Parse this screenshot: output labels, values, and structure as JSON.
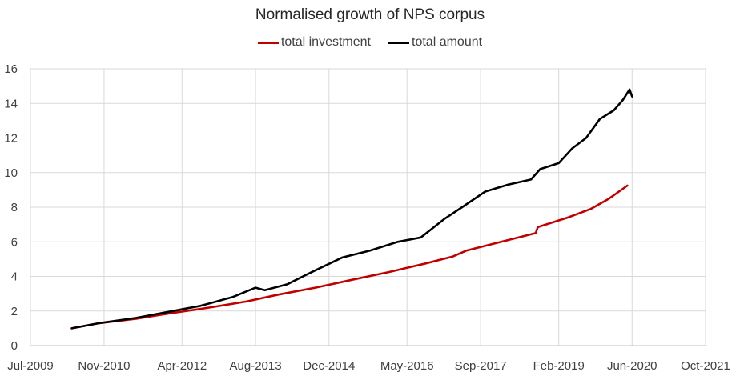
{
  "chart_data": {
    "type": "line",
    "title": "Normalised growth of NPS corpus",
    "xlabel": "",
    "ylabel": "",
    "x_axis_type": "date",
    "xlim": [
      "2009-07-01",
      "2021-10-01"
    ],
    "x_tick_labels": [
      "Jul-2009",
      "Nov-2010",
      "Apr-2012",
      "Aug-2013",
      "Dec-2014",
      "May-2016",
      "Sep-2017",
      "Feb-2019",
      "Jun-2020",
      "Oct-2021"
    ],
    "x_ticks": [
      "2009-07-01",
      "2010-11-01",
      "2012-04-01",
      "2013-08-01",
      "2014-12-01",
      "2016-05-01",
      "2017-09-01",
      "2019-02-01",
      "2020-06-01",
      "2021-10-01"
    ],
    "ylim": [
      0,
      16
    ],
    "y_ticks": [
      0,
      2,
      4,
      6,
      8,
      10,
      12,
      14,
      16
    ],
    "grid": true,
    "legend_position": "top-center",
    "series": [
      {
        "name": "total investment",
        "color": "#c00000",
        "points": [
          [
            "2010-04-01",
            1.0
          ],
          [
            "2010-10-01",
            1.3
          ],
          [
            "2011-06-01",
            1.55
          ],
          [
            "2012-01-01",
            1.85
          ],
          [
            "2012-10-01",
            2.2
          ],
          [
            "2013-06-01",
            2.55
          ],
          [
            "2014-01-01",
            2.95
          ],
          [
            "2014-09-01",
            3.35
          ],
          [
            "2015-05-01",
            3.8
          ],
          [
            "2016-01-01",
            4.25
          ],
          [
            "2016-09-01",
            4.75
          ],
          [
            "2017-03-01",
            5.15
          ],
          [
            "2017-06-01",
            5.5
          ],
          [
            "2017-12-01",
            5.9
          ],
          [
            "2018-06-01",
            6.3
          ],
          [
            "2018-09-01",
            6.5
          ],
          [
            "2018-09-15",
            6.85
          ],
          [
            "2019-04-01",
            7.4
          ],
          [
            "2019-09-01",
            7.9
          ],
          [
            "2020-01-01",
            8.5
          ],
          [
            "2020-05-01",
            9.25
          ]
        ]
      },
      {
        "name": "total amount",
        "color": "#000000",
        "points": [
          [
            "2010-04-01",
            1.0
          ],
          [
            "2010-10-01",
            1.3
          ],
          [
            "2011-06-01",
            1.6
          ],
          [
            "2012-01-01",
            1.95
          ],
          [
            "2012-08-01",
            2.3
          ],
          [
            "2013-03-01",
            2.8
          ],
          [
            "2013-08-01",
            3.35
          ],
          [
            "2013-10-01",
            3.2
          ],
          [
            "2014-03-01",
            3.55
          ],
          [
            "2014-09-01",
            4.35
          ],
          [
            "2015-03-01",
            5.1
          ],
          [
            "2015-09-01",
            5.5
          ],
          [
            "2016-03-01",
            6.0
          ],
          [
            "2016-08-01",
            6.25
          ],
          [
            "2017-01-01",
            7.3
          ],
          [
            "2017-05-01",
            8.0
          ],
          [
            "2017-10-01",
            8.9
          ],
          [
            "2018-03-01",
            9.3
          ],
          [
            "2018-08-01",
            9.6
          ],
          [
            "2018-10-01",
            10.2
          ],
          [
            "2019-02-01",
            10.55
          ],
          [
            "2019-05-01",
            11.4
          ],
          [
            "2019-08-01",
            12.0
          ],
          [
            "2019-11-01",
            13.1
          ],
          [
            "2020-02-01",
            13.6
          ],
          [
            "2020-04-01",
            14.2
          ],
          [
            "2020-05-15",
            14.8
          ],
          [
            "2020-06-01",
            14.4
          ]
        ]
      }
    ]
  }
}
